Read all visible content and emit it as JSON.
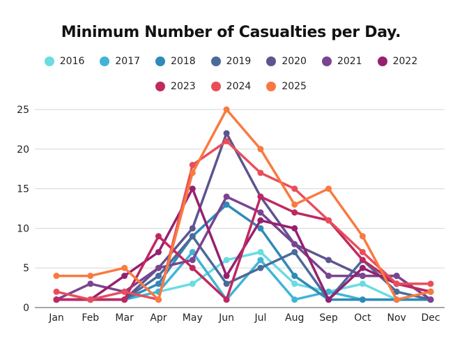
{
  "chart_data": {
    "type": "line",
    "title": "Minimum Number of Casualties per Day.",
    "xlabel": "",
    "ylabel": "",
    "categories": [
      "Jan",
      "Feb",
      "Mar",
      "Apr",
      "May",
      "Jun",
      "Jul",
      "Aug",
      "Sep",
      "Oct",
      "Nov",
      "Dec"
    ],
    "ylim": [
      0,
      25
    ],
    "yticks": [
      0,
      5,
      10,
      15,
      20,
      25
    ],
    "grid": true,
    "legend_position": "top-center",
    "series": [
      {
        "name": "2016",
        "color": "#6ADCE2",
        "values": [
          1,
          1,
          1,
          2,
          3,
          6,
          7,
          3,
          2,
          3,
          1,
          1
        ]
      },
      {
        "name": "2017",
        "color": "#3FB5D6",
        "values": [
          1,
          1,
          1,
          2,
          7,
          1,
          6,
          1,
          2,
          1,
          1,
          1
        ]
      },
      {
        "name": "2018",
        "color": "#2E8AB8",
        "values": [
          1,
          1,
          1,
          3,
          9,
          13,
          10,
          4,
          1,
          1,
          1,
          1
        ]
      },
      {
        "name": "2019",
        "color": "#4A6A9A",
        "values": [
          1,
          1,
          1,
          4,
          9,
          3,
          5,
          7,
          1,
          6,
          2,
          1
        ]
      },
      {
        "name": "2020",
        "color": "#5E5490",
        "values": [
          1,
          1,
          1,
          5,
          10,
          22,
          14,
          8,
          6,
          4,
          4,
          1
        ]
      },
      {
        "name": "2021",
        "color": "#7A4490",
        "values": [
          1,
          3,
          2,
          5,
          6,
          14,
          12,
          8,
          4,
          4,
          4,
          1
        ]
      },
      {
        "name": "2022",
        "color": "#962070",
        "values": [
          1,
          1,
          4,
          7,
          15,
          4,
          11,
          10,
          1,
          5,
          3,
          2
        ]
      },
      {
        "name": "2023",
        "color": "#C02860",
        "values": [
          1,
          1,
          1,
          9,
          5,
          1,
          14,
          12,
          11,
          6,
          3,
          2
        ]
      },
      {
        "name": "2024",
        "color": "#E84E5A",
        "values": [
          2,
          1,
          2,
          1,
          18,
          21,
          17,
          15,
          11,
          7,
          3,
          3
        ]
      },
      {
        "name": "2025",
        "color": "#F97A40",
        "values": [
          4,
          4,
          5,
          1,
          17,
          25,
          20,
          13,
          15,
          9,
          1,
          2
        ]
      }
    ]
  }
}
